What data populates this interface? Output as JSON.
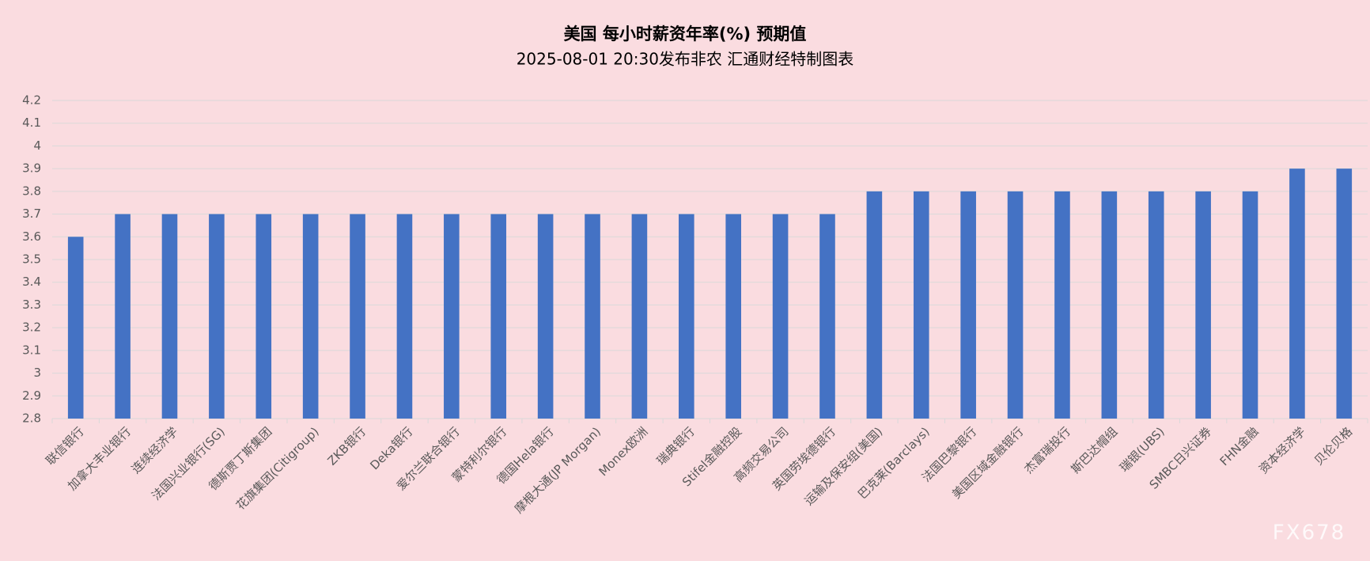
{
  "chart_data": {
    "type": "bar",
    "title": "美国  每小时薪资年率(%)  预期值",
    "subtitle": "2025-08-01 20:30发布非农 汇通财经特制图表",
    "watermark": "FX678",
    "categories": [
      "联信银行",
      "加拿大丰业银行",
      "连续经济学",
      "法国兴业银行(SG)",
      "德斯贾丁斯集团",
      "花旗集团(Citigroup)",
      "ZKB银行",
      "Deka银行",
      "爱尔兰联合银行",
      "蒙特利尔银行",
      "德国Hela银行",
      "摩根大通(JP Morgan)",
      "Monex欧洲",
      "瑞典银行",
      "Stifel金融控股",
      "高频交易公司",
      "英国劳埃德银行",
      "运输及保安组(美国)",
      "巴克莱(Barclays)",
      "法国巴黎银行",
      "美国区域金融银行",
      "杰富瑞投行",
      "斯巴达帽组",
      "瑞银(UBS)",
      "SMBC日兴证券",
      "FHN金融",
      "资本经济学",
      "贝伦贝格"
    ],
    "values": [
      3.6,
      3.7,
      3.7,
      3.7,
      3.7,
      3.7,
      3.7,
      3.7,
      3.7,
      3.7,
      3.7,
      3.7,
      3.7,
      3.7,
      3.7,
      3.7,
      3.7,
      3.8,
      3.8,
      3.8,
      3.8,
      3.8,
      3.8,
      3.8,
      3.8,
      3.8,
      3.9,
      3.9
    ],
    "color": "#4472c4",
    "ylim": [
      2.8,
      4.2
    ],
    "yticks": [
      2.8,
      2.9,
      3,
      3.1,
      3.2,
      3.3,
      3.4,
      3.5,
      3.6,
      3.7,
      3.8,
      3.9,
      4,
      4.1,
      4.2
    ],
    "grid": true
  }
}
